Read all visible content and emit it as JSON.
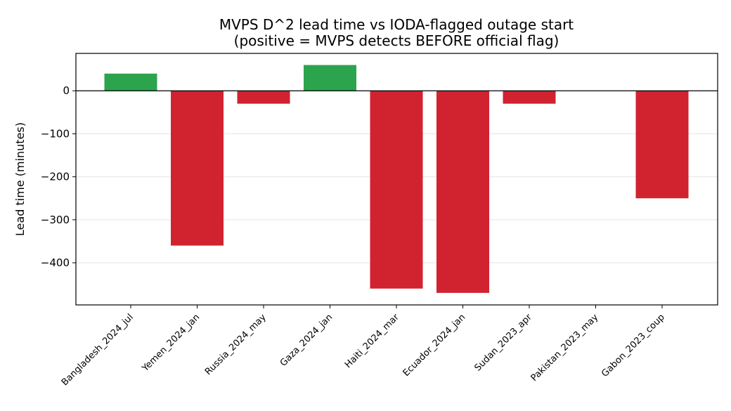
{
  "chart_data": {
    "type": "bar",
    "title_line1": "MVPS D^2 lead time vs IODA-flagged outage start",
    "title_line2": "(positive = MVPS detects BEFORE official flag)",
    "xlabel": "",
    "ylabel": "Lead time (minutes)",
    "categories": [
      "Bangladesh_2024_jul",
      "Yemen_2024_jan",
      "Russia_2024_may",
      "Gaza_2024_jan",
      "Haiti_2024_mar",
      "Ecuador_2024_jan",
      "Sudan_2023_apr",
      "Pakistan_2023_may",
      "Gabon_2023_coup"
    ],
    "values": [
      40,
      -360,
      -30,
      60,
      -460,
      -470,
      -30,
      0,
      -250
    ],
    "ylim": [
      -498,
      87
    ],
    "yticks": [
      0,
      -100,
      -200,
      -300,
      -400
    ],
    "ytick_labels": [
      "0",
      "−100",
      "−200",
      "−300",
      "−400"
    ],
    "grid": "y",
    "zero_line": true,
    "colors": {
      "positive": "#2ca44e",
      "negative": "#d12230"
    }
  }
}
